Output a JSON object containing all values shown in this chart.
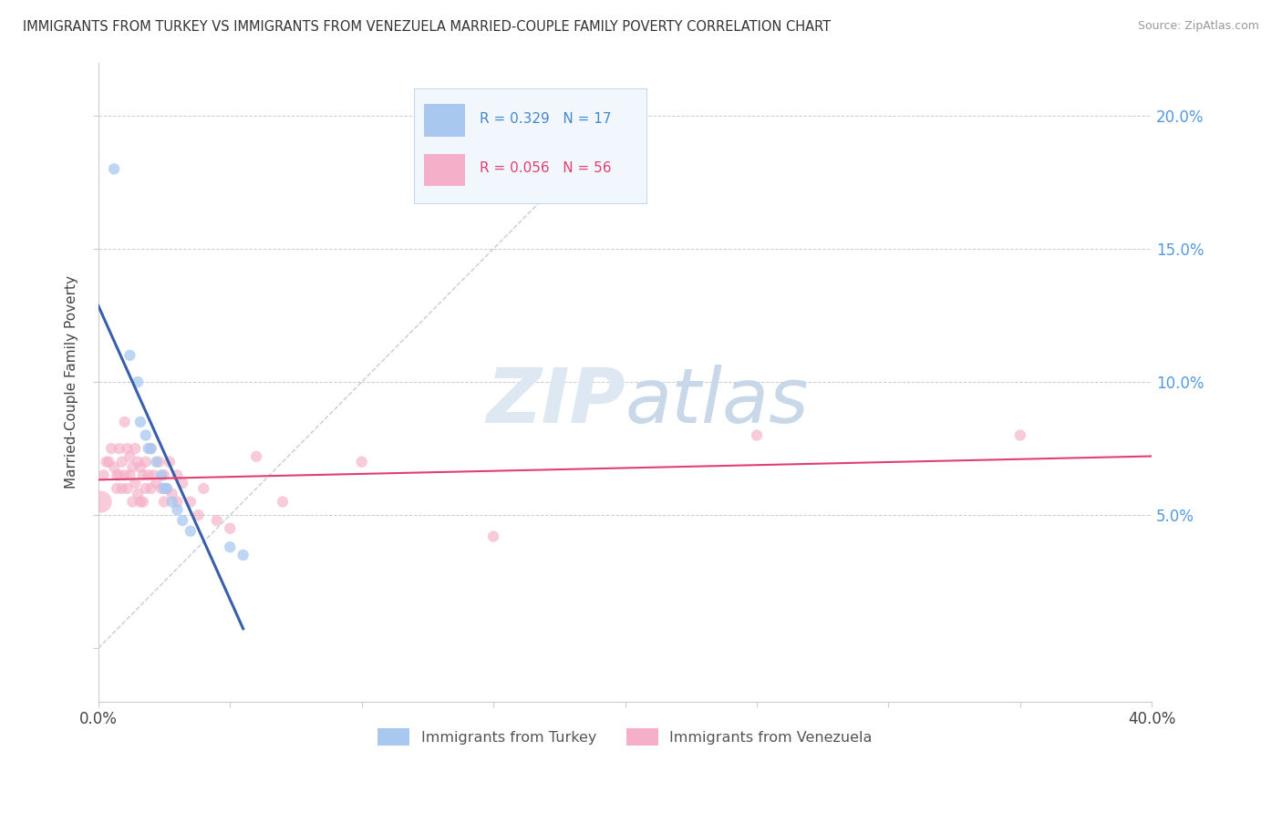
{
  "title": "IMMIGRANTS FROM TURKEY VS IMMIGRANTS FROM VENEZUELA MARRIED-COUPLE FAMILY POVERTY CORRELATION CHART",
  "source": "Source: ZipAtlas.com",
  "ylabel": "Married-Couple Family Poverty",
  "xlim": [
    0.0,
    0.4
  ],
  "ylim": [
    -0.02,
    0.22
  ],
  "turkey_R": 0.329,
  "turkey_N": 17,
  "venezuela_R": 0.056,
  "venezuela_N": 56,
  "turkey_color": "#a8c8f0",
  "venezuela_color": "#f5afc8",
  "turkey_line_color": "#3a5faa",
  "venezuela_line_color": "#e04070",
  "diagonal_color": "#c0cedf",
  "watermark_color": "#dde8f2",
  "turkey_scatter": [
    [
      0.006,
      0.18
    ],
    [
      0.012,
      0.11
    ],
    [
      0.015,
      0.1
    ],
    [
      0.016,
      0.085
    ],
    [
      0.018,
      0.08
    ],
    [
      0.019,
      0.075
    ],
    [
      0.02,
      0.075
    ],
    [
      0.022,
      0.07
    ],
    [
      0.024,
      0.065
    ],
    [
      0.025,
      0.06
    ],
    [
      0.026,
      0.06
    ],
    [
      0.028,
      0.055
    ],
    [
      0.03,
      0.052
    ],
    [
      0.032,
      0.048
    ],
    [
      0.035,
      0.044
    ],
    [
      0.05,
      0.038
    ],
    [
      0.055,
      0.035
    ]
  ],
  "turkey_sizes": [
    80,
    80,
    80,
    80,
    80,
    80,
    80,
    80,
    80,
    80,
    80,
    80,
    80,
    80,
    80,
    80,
    80
  ],
  "venezuela_scatter": [
    [
      0.001,
      0.055
    ],
    [
      0.002,
      0.065
    ],
    [
      0.003,
      0.07
    ],
    [
      0.004,
      0.07
    ],
    [
      0.005,
      0.075
    ],
    [
      0.006,
      0.068
    ],
    [
      0.007,
      0.065
    ],
    [
      0.007,
      0.06
    ],
    [
      0.008,
      0.075
    ],
    [
      0.008,
      0.065
    ],
    [
      0.009,
      0.07
    ],
    [
      0.009,
      0.06
    ],
    [
      0.01,
      0.085
    ],
    [
      0.01,
      0.065
    ],
    [
      0.011,
      0.075
    ],
    [
      0.011,
      0.06
    ],
    [
      0.012,
      0.072
    ],
    [
      0.012,
      0.065
    ],
    [
      0.013,
      0.068
    ],
    [
      0.013,
      0.055
    ],
    [
      0.014,
      0.075
    ],
    [
      0.014,
      0.062
    ],
    [
      0.015,
      0.07
    ],
    [
      0.015,
      0.058
    ],
    [
      0.016,
      0.068
    ],
    [
      0.016,
      0.055
    ],
    [
      0.017,
      0.065
    ],
    [
      0.017,
      0.055
    ],
    [
      0.018,
      0.07
    ],
    [
      0.018,
      0.06
    ],
    [
      0.019,
      0.065
    ],
    [
      0.02,
      0.075
    ],
    [
      0.02,
      0.06
    ],
    [
      0.021,
      0.065
    ],
    [
      0.022,
      0.062
    ],
    [
      0.023,
      0.07
    ],
    [
      0.024,
      0.06
    ],
    [
      0.025,
      0.065
    ],
    [
      0.025,
      0.055
    ],
    [
      0.026,
      0.06
    ],
    [
      0.027,
      0.07
    ],
    [
      0.028,
      0.058
    ],
    [
      0.03,
      0.065
    ],
    [
      0.03,
      0.055
    ],
    [
      0.032,
      0.062
    ],
    [
      0.035,
      0.055
    ],
    [
      0.038,
      0.05
    ],
    [
      0.04,
      0.06
    ],
    [
      0.045,
      0.048
    ],
    [
      0.05,
      0.045
    ],
    [
      0.06,
      0.072
    ],
    [
      0.07,
      0.055
    ],
    [
      0.1,
      0.07
    ],
    [
      0.15,
      0.042
    ],
    [
      0.25,
      0.08
    ],
    [
      0.35,
      0.08
    ]
  ],
  "venezuela_sizes": [
    300,
    80,
    80,
    80,
    80,
    80,
    80,
    80,
    80,
    80,
    80,
    80,
    80,
    80,
    80,
    80,
    80,
    80,
    80,
    80,
    80,
    80,
    80,
    80,
    80,
    80,
    80,
    80,
    80,
    80,
    80,
    80,
    80,
    80,
    80,
    80,
    80,
    80,
    80,
    80,
    80,
    80,
    80,
    80,
    80,
    80,
    80,
    80,
    80,
    80,
    80,
    80,
    80,
    80,
    80,
    80
  ]
}
